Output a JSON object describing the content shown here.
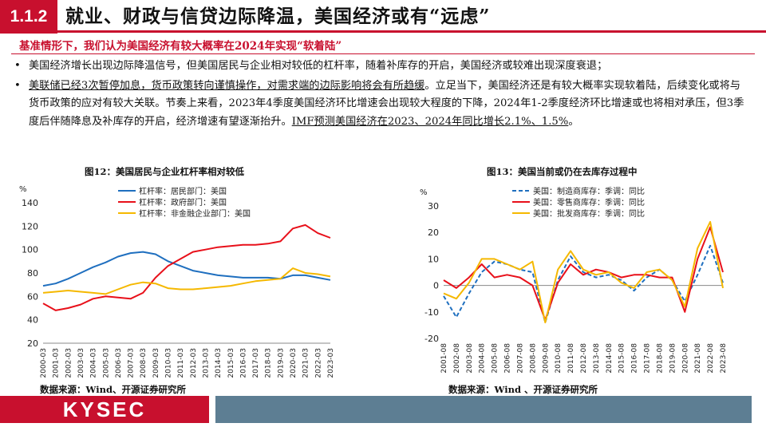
{
  "header": {
    "section_number": "1.1.2",
    "title": "就业、财政与信贷边际降温，美国经济或有“远虑”"
  },
  "subtitle": "基准情形下，我们认为美国经济有较大概率在2024年实现“软着陆”",
  "bullets": [
    {
      "dot": "•",
      "text": "美国经济增长出现边际降温信号，但美国居民与企业相对较低的杠杆率，随着补库存的开启，美国经济或较难出现深度衰退；"
    },
    {
      "dot": "•",
      "part1": "美联储已经3次暂停加息，货币政策转向谨慎操作，对需求端的边际影响将会有所趋缓",
      "part2": "。立足当下，美国经济还是有较大概率实现软着陆，后续变化或将与货币政策的应对有较大关联。节奏上来看，2023年4季度美国经济环比增速会出现较大程度的下降，2024年1-2季度经济环比增速或也将相对承压，但3季度后伴随降息及补库存的开启，经济增速有望逐渐抬升。",
      "part3": "IMF预测美国经济在2023、2024年同比增长2.1%、1.5%",
      "part4": "。"
    }
  ],
  "figure12": {
    "title": "图12：美国居民与企业杠杆率相对较低",
    "source": "数据来源：Wind、开源证券研究所"
  },
  "figure13": {
    "title": "图13：美国当前或仍在去库存过程中",
    "source": "数据来源：Wind 、开源证券研究所"
  },
  "footer": {
    "logo": "KYSEC"
  },
  "colors": {
    "accent": "#c8102e",
    "footer_bar": "#5d7e93",
    "blue": "#1f6fbf",
    "red": "#e8101a",
    "orange": "#f5b800"
  },
  "chart_data": [
    {
      "type": "line",
      "title": "图12：美国居民与企业杠杆率相对较低",
      "ylabel": "%",
      "ylim": [
        20,
        140
      ],
      "yticks": [
        20,
        40,
        60,
        80,
        100,
        120,
        140
      ],
      "categories": [
        "2000-03",
        "2001-03",
        "2002-03",
        "2003-03",
        "2004-03",
        "2005-03",
        "2006-03",
        "2007-03",
        "2008-03",
        "2009-03",
        "2010-03",
        "2011-03",
        "2012-03",
        "2013-03",
        "2014-03",
        "2015-03",
        "2016-03",
        "2017-03",
        "2018-03",
        "2019-03",
        "2020-03",
        "2021-03",
        "2022-03",
        "2023-03"
      ],
      "series": [
        {
          "name": "杠杆率：居民部门：美国",
          "color": "#1f6fbf",
          "values": [
            69,
            71,
            75,
            80,
            85,
            89,
            94,
            97,
            98,
            96,
            90,
            86,
            82,
            80,
            78,
            77,
            76,
            76,
            76,
            75,
            78,
            78,
            76,
            74
          ]
        },
        {
          "name": "杠杆率：政府部门：美国",
          "color": "#e8101a",
          "values": [
            54,
            48,
            50,
            53,
            58,
            60,
            59,
            58,
            63,
            76,
            86,
            92,
            98,
            100,
            102,
            103,
            104,
            104,
            105,
            107,
            118,
            121,
            114,
            110
          ]
        },
        {
          "name": "杠杆率：非金融企业部门：美国",
          "color": "#f5b800",
          "values": [
            63,
            64,
            65,
            64,
            63,
            62,
            66,
            70,
            72,
            71,
            67,
            66,
            66,
            67,
            68,
            69,
            71,
            73,
            74,
            75,
            84,
            80,
            79,
            77
          ]
        }
      ]
    },
    {
      "type": "line",
      "title": "图13：美国当前或仍在去库存过程中",
      "ylabel": "%",
      "ylim": [
        -20,
        30
      ],
      "yticks": [
        -20,
        -10,
        0,
        10,
        20,
        30
      ],
      "categories": [
        "2001-08",
        "2002-08",
        "2003-08",
        "2004-08",
        "2005-08",
        "2006-08",
        "2007-08",
        "2008-08",
        "2009-08",
        "2010-08",
        "2011-08",
        "2012-08",
        "2013-08",
        "2014-08",
        "2015-08",
        "2016-08",
        "2017-08",
        "2018-08",
        "2019-08",
        "2020-08",
        "2021-08",
        "2022-08",
        "2023-08"
      ],
      "series": [
        {
          "name": "美国：制造商库存：季调：同比",
          "color": "#1f6fbf",
          "dash": true,
          "values": [
            -4,
            -12,
            -3,
            5,
            9,
            8,
            6,
            5,
            -14,
            2,
            11,
            5,
            3,
            4,
            2,
            -2,
            3,
            6,
            2,
            -6,
            4,
            15,
            1
          ]
        },
        {
          "name": "美国：零售商库存：季调：同比",
          "color": "#e8101a",
          "values": [
            2,
            -1,
            3,
            8,
            3,
            4,
            3,
            0,
            -13,
            1,
            8,
            4,
            6,
            5,
            3,
            4,
            4,
            3,
            3,
            -10,
            10,
            22,
            5
          ]
        },
        {
          "name": "美国：批发商库存：季调：同比",
          "color": "#f5b800",
          "values": [
            -3,
            -5,
            1,
            10,
            10,
            8,
            6,
            9,
            -14,
            6,
            13,
            6,
            4,
            5,
            1,
            -1,
            5,
            6,
            2,
            -8,
            14,
            24,
            -1
          ]
        }
      ]
    }
  ]
}
